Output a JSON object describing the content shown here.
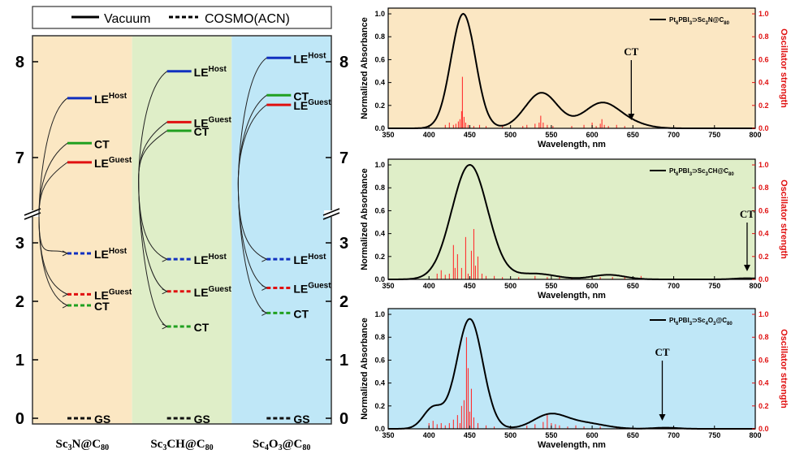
{
  "chart_data": [
    {
      "type": "diagram",
      "legend": {
        "solid": "Vacuum",
        "dashed": "COSMO(ACN)"
      },
      "y_ticks_upper": [
        7,
        8
      ],
      "y_ticks_lower": [
        0,
        1,
        2,
        3
      ],
      "systems": [
        {
          "name": "Sc₃N@C₈₀",
          "name_parts": [
            "Sc",
            "3",
            "N@C",
            "80"
          ],
          "color": "#fbe7c3",
          "vacuum": {
            "LE_host": 7.62,
            "CT": 7.15,
            "LE_guest": 6.95
          },
          "acn": {
            "LE_host": 2.82,
            "LE_guest": 2.12,
            "CT": 1.93,
            "GS": 0.0
          }
        },
        {
          "name": "Sc₃CH@C₈₀",
          "name_parts": [
            "Sc",
            "3",
            "CH@C",
            "80"
          ],
          "color": "#dfeec8",
          "vacuum": {
            "LE_host": 7.9,
            "LE_guest": 7.37,
            "CT": 7.28
          },
          "acn": {
            "LE_host": 2.72,
            "LE_guest": 2.17,
            "CT": 1.57,
            "GS": 0.0
          }
        },
        {
          "name": "Sc₄O₃@C₈₀",
          "name_parts": [
            "Sc",
            "4",
            "O",
            "3",
            "@C",
            "80"
          ],
          "color": "#bfe7f7",
          "vacuum": {
            "LE_host": 8.04,
            "CT": 7.65,
            "LE_guest": 7.55
          },
          "acn": {
            "LE_host": 2.72,
            "LE_guest": 2.23,
            "CT": 1.8,
            "GS": 0.0
          }
        }
      ],
      "labels": {
        "LE": "LE",
        "host": "Host",
        "guest": "Guest",
        "CT": "CT",
        "GS": "GS"
      }
    },
    {
      "type": "line",
      "background": "#fbe7c3",
      "legend_parts": [
        "Pt",
        "6",
        "PBI",
        "3",
        "⊃Sc",
        "3",
        "N@C",
        "80"
      ],
      "xlabel": "Wavelength, nm",
      "ylabel": "Normalized Absorbance",
      "y2label": "Oscillator strength",
      "xlim": [
        350,
        800
      ],
      "ylim": [
        0,
        1.05
      ],
      "y2lim": [
        0,
        1.05
      ],
      "xticks": [
        350,
        400,
        450,
        500,
        550,
        600,
        650,
        700,
        750,
        800
      ],
      "yticks": [
        0.0,
        0.2,
        0.4,
        0.6,
        0.8,
        1.0
      ],
      "annotation": {
        "text": "CT",
        "x": 648
      },
      "peaks": [
        {
          "center": 442,
          "height": 1.0,
          "width": 15
        },
        {
          "center": 538,
          "height": 0.31,
          "width": 20
        },
        {
          "center": 612,
          "height": 0.22,
          "width": 22
        },
        {
          "center": 650,
          "height": 0.03,
          "width": 20
        }
      ],
      "sticks": [
        [
          420,
          0.03
        ],
        [
          425,
          0.05
        ],
        [
          430,
          0.03
        ],
        [
          433,
          0.04
        ],
        [
          436,
          0.06
        ],
        [
          438,
          0.08
        ],
        [
          440,
          0.15
        ],
        [
          441,
          0.45
        ],
        [
          443,
          0.1
        ],
        [
          445,
          0.05
        ],
        [
          448,
          0.03
        ],
        [
          455,
          0.02
        ],
        [
          462,
          0.03
        ],
        [
          470,
          0.02
        ],
        [
          490,
          0.03
        ],
        [
          515,
          0.02
        ],
        [
          520,
          0.03
        ],
        [
          530,
          0.04
        ],
        [
          535,
          0.05
        ],
        [
          537,
          0.11
        ],
        [
          540,
          0.05
        ],
        [
          545,
          0.03
        ],
        [
          552,
          0.02
        ],
        [
          575,
          0.02
        ],
        [
          590,
          0.03
        ],
        [
          600,
          0.05
        ],
        [
          605,
          0.02
        ],
        [
          610,
          0.04
        ],
        [
          612,
          0.08
        ],
        [
          615,
          0.03
        ],
        [
          620,
          0.02
        ],
        [
          630,
          0.03
        ],
        [
          640,
          0.02
        ]
      ]
    },
    {
      "type": "line",
      "background": "#dfeec8",
      "legend_parts": [
        "Pt",
        "6",
        "PBI",
        "3",
        "⊃Sc",
        "3",
        "CH@C",
        "80"
      ],
      "xlabel": "Wavelength, nm",
      "ylabel": "Normalized Absorbance",
      "y2label": "Oscillator strength",
      "xlim": [
        350,
        800
      ],
      "ylim": [
        0,
        1.05
      ],
      "y2lim": [
        0,
        1.05
      ],
      "xticks": [
        350,
        400,
        450,
        500,
        550,
        600,
        650,
        700,
        750,
        800
      ],
      "yticks": [
        0.0,
        0.2,
        0.4,
        0.6,
        0.8,
        1.0
      ],
      "annotation": {
        "text": "CT",
        "x": 790
      },
      "peaks": [
        {
          "center": 450,
          "height": 1.0,
          "width": 22
        },
        {
          "center": 530,
          "height": 0.05,
          "width": 25
        },
        {
          "center": 620,
          "height": 0.04,
          "width": 20
        },
        {
          "center": 790,
          "height": 0.01,
          "width": 15
        }
      ],
      "sticks": [
        [
          410,
          0.05
        ],
        [
          415,
          0.08
        ],
        [
          420,
          0.04
        ],
        [
          425,
          0.05
        ],
        [
          430,
          0.3
        ],
        [
          432,
          0.1
        ],
        [
          435,
          0.22
        ],
        [
          440,
          0.1
        ],
        [
          445,
          0.37
        ],
        [
          448,
          0.05
        ],
        [
          452,
          0.25
        ],
        [
          455,
          0.44
        ],
        [
          457,
          0.12
        ],
        [
          460,
          0.2
        ],
        [
          465,
          0.05
        ],
        [
          470,
          0.03
        ],
        [
          480,
          0.03
        ],
        [
          490,
          0.02
        ],
        [
          510,
          0.02
        ],
        [
          530,
          0.03
        ],
        [
          545,
          0.02
        ],
        [
          560,
          0.02
        ],
        [
          575,
          0.02
        ],
        [
          600,
          0.02
        ],
        [
          610,
          0.02
        ],
        [
          625,
          0.02
        ],
        [
          640,
          0.02
        ],
        [
          660,
          0.03
        ],
        [
          700,
          0.01
        ],
        [
          790,
          0.01
        ]
      ]
    },
    {
      "type": "line",
      "background": "#bfe7f7",
      "legend_parts": [
        "Pt",
        "6",
        "PBI",
        "3",
        "⊃Sc",
        "4",
        "O",
        "3",
        "@C",
        "80"
      ],
      "xlabel": "Wavelength, nm",
      "ylabel": "Normalized Absorbance",
      "y2label": "Oscillator strength",
      "xlim": [
        350,
        800
      ],
      "ylim": [
        0,
        1.05
      ],
      "y2lim": [
        0,
        1.05
      ],
      "xticks": [
        350,
        400,
        450,
        500,
        550,
        600,
        650,
        700,
        750,
        800
      ],
      "yticks": [
        0.0,
        0.2,
        0.4,
        0.6,
        0.8,
        1.0
      ],
      "annotation": {
        "text": "CT",
        "x": 686
      },
      "peaks": [
        {
          "center": 405,
          "height": 0.18,
          "width": 12
        },
        {
          "center": 450,
          "height": 0.96,
          "width": 16
        },
        {
          "center": 548,
          "height": 0.12,
          "width": 20
        },
        {
          "center": 590,
          "height": 0.05,
          "width": 25
        },
        {
          "center": 690,
          "height": 0.01,
          "width": 15
        }
      ],
      "sticks": [
        [
          400,
          0.05
        ],
        [
          405,
          0.07
        ],
        [
          410,
          0.04
        ],
        [
          415,
          0.05
        ],
        [
          420,
          0.03
        ],
        [
          425,
          0.05
        ],
        [
          430,
          0.08
        ],
        [
          435,
          0.12
        ],
        [
          438,
          0.05
        ],
        [
          440,
          0.2
        ],
        [
          443,
          0.25
        ],
        [
          446,
          0.8
        ],
        [
          448,
          0.53
        ],
        [
          450,
          0.15
        ],
        [
          452,
          0.35
        ],
        [
          455,
          0.1
        ],
        [
          460,
          0.05
        ],
        [
          470,
          0.03
        ],
        [
          480,
          0.02
        ],
        [
          520,
          0.03
        ],
        [
          530,
          0.04
        ],
        [
          540,
          0.06
        ],
        [
          545,
          0.12
        ],
        [
          550,
          0.05
        ],
        [
          555,
          0.04
        ],
        [
          560,
          0.03
        ],
        [
          570,
          0.02
        ],
        [
          580,
          0.03
        ],
        [
          590,
          0.02
        ],
        [
          610,
          0.02
        ],
        [
          630,
          0.02
        ],
        [
          660,
          0.01
        ]
      ]
    }
  ]
}
